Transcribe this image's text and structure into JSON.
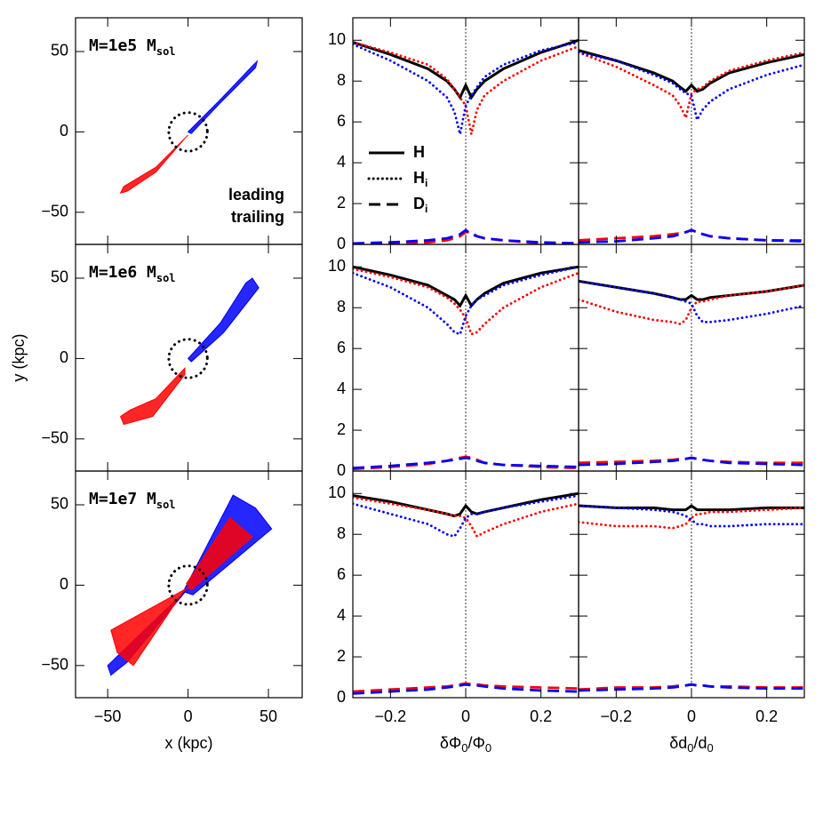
{
  "chart_data": [
    {
      "type": "region",
      "label": "M=1e5 M",
      "label_sub": "sol",
      "xlim": [
        -70,
        71
      ],
      "ylim": [
        -70,
        71
      ],
      "xticks": [
        {
          "value": -50,
          "label": "−50"
        },
        0,
        50
      ],
      "yticks": [
        {
          "value": -50,
          "label": "−50"
        },
        0,
        50
      ],
      "show_xtick_labels": false,
      "show_ytick_labels": true,
      "circle_radius": 12,
      "series": [
        {
          "name": "leading",
          "color": "#ff0000",
          "x": [
            0,
            -20,
            -40,
            -42,
            -38,
            -20,
            -2
          ],
          "y": [
            -2,
            -22,
            -34,
            -38,
            -37,
            -25,
            -4
          ]
        },
        {
          "name": "trailing",
          "color": "#0000ff",
          "x": [
            0,
            20,
            40,
            43,
            42,
            20,
            2
          ],
          "y": [
            0,
            20,
            41,
            44,
            40,
            18,
            -1
          ]
        }
      ]
    },
    {
      "type": "line",
      "xlim": [
        -0.3,
        0.3
      ],
      "ylim": [
        0,
        11.1
      ],
      "xticks": [
        {
          "value": -0.2,
          "label": "−0.2"
        },
        0,
        0.2
      ],
      "yticks": [
        0,
        2,
        4,
        6,
        8,
        10
      ],
      "show_xtick_labels": false,
      "show_ytick_labels": true,
      "vline": 0,
      "legend": [
        {
          "name": "H",
          "style": "solid"
        },
        {
          "name": "H",
          "sub": "i",
          "style": "dotted"
        },
        {
          "name": "D",
          "sub": "i",
          "style": "dashed"
        }
      ],
      "x": [
        -0.3,
        -0.2,
        -0.1,
        -0.05,
        -0.03,
        -0.015,
        0,
        0.015,
        0.03,
        0.05,
        0.1,
        0.2,
        0.3
      ],
      "series": [
        {
          "color": "#000000",
          "style": "solid",
          "values": [
            9.9,
            9.3,
            8.6,
            8.0,
            7.6,
            7.2,
            7.8,
            7.2,
            7.6,
            8.0,
            8.6,
            9.4,
            10.0
          ]
        },
        {
          "color": "#ff0000",
          "style": "dotted",
          "values": [
            9.9,
            9.4,
            8.8,
            8.1,
            7.6,
            7.2,
            6.8,
            5.4,
            6.6,
            7.3,
            8.0,
            9.0,
            9.7
          ]
        },
        {
          "color": "#0000ff",
          "style": "dotted",
          "values": [
            9.8,
            9.0,
            8.0,
            7.2,
            6.5,
            5.4,
            6.8,
            7.3,
            7.7,
            8.2,
            8.8,
            9.5,
            9.9
          ]
        },
        {
          "color": "#ff0000",
          "style": "dashed",
          "values": [
            0.05,
            0.05,
            0.1,
            0.2,
            0.3,
            0.4,
            0.6,
            0.6,
            0.4,
            0.3,
            0.2,
            0.05,
            0.05
          ]
        },
        {
          "color": "#0000ff",
          "style": "dashed",
          "values": [
            0.05,
            0.1,
            0.2,
            0.3,
            0.4,
            0.5,
            0.7,
            0.5,
            0.4,
            0.3,
            0.2,
            0.1,
            0.05
          ]
        }
      ]
    },
    {
      "type": "line",
      "xlim": [
        -0.3,
        0.3
      ],
      "ylim": [
        0,
        11.1
      ],
      "xticks": [
        {
          "value": -0.2,
          "label": "−0.2"
        },
        0,
        0.2
      ],
      "yticks": [
        0,
        2,
        4,
        6,
        8,
        10
      ],
      "show_xtick_labels": false,
      "show_ytick_labels": false,
      "vline": 0,
      "x": [
        -0.3,
        -0.2,
        -0.1,
        -0.05,
        -0.03,
        -0.015,
        0,
        0.015,
        0.03,
        0.05,
        0.1,
        0.2,
        0.3
      ],
      "series": [
        {
          "color": "#000000",
          "style": "solid",
          "values": [
            9.5,
            9.0,
            8.4,
            8.0,
            7.7,
            7.5,
            7.8,
            7.5,
            7.6,
            7.9,
            8.4,
            8.9,
            9.3
          ]
        },
        {
          "color": "#ff0000",
          "style": "dotted",
          "values": [
            9.4,
            8.7,
            7.8,
            7.3,
            6.8,
            6.2,
            7.4,
            7.6,
            7.7,
            8.0,
            8.5,
            9.0,
            9.4
          ]
        },
        {
          "color": "#0000ff",
          "style": "dotted",
          "values": [
            9.4,
            9.0,
            8.3,
            7.9,
            7.6,
            7.4,
            7.3,
            6.1,
            6.6,
            7.0,
            7.6,
            8.3,
            8.8
          ]
        },
        {
          "color": "#ff0000",
          "style": "dashed",
          "values": [
            0.2,
            0.3,
            0.4,
            0.5,
            0.55,
            0.6,
            0.7,
            0.6,
            0.5,
            0.4,
            0.3,
            0.2,
            0.2
          ]
        },
        {
          "color": "#0000ff",
          "style": "dashed",
          "values": [
            0.1,
            0.15,
            0.3,
            0.4,
            0.5,
            0.6,
            0.7,
            0.6,
            0.5,
            0.4,
            0.3,
            0.2,
            0.15
          ]
        }
      ]
    },
    {
      "type": "region",
      "label": "M=1e6 M",
      "label_sub": "sol",
      "ylabel": "y (kpc)",
      "xlim": [
        -70,
        71
      ],
      "ylim": [
        -70,
        71
      ],
      "xticks": [
        {
          "value": -50,
          "label": "−50"
        },
        0,
        50
      ],
      "yticks": [
        {
          "value": -50,
          "label": "−50"
        },
        0,
        50
      ],
      "show_xtick_labels": false,
      "show_ytick_labels": true,
      "circle_radius": 12,
      "series": [
        {
          "color": "#ff0000",
          "x": [
            -2,
            -20,
            -36,
            -42,
            -40,
            -22,
            -2
          ],
          "y": [
            -6,
            -25,
            -32,
            -36,
            -41,
            -36,
            -10
          ]
        },
        {
          "color": "#0000ff",
          "x": [
            0,
            20,
            36,
            40,
            44,
            22,
            2
          ],
          "y": [
            0,
            22,
            47,
            50,
            44,
            16,
            -2
          ]
        }
      ]
    },
    {
      "type": "line",
      "xlim": [
        -0.3,
        0.3
      ],
      "ylim": [
        0,
        11.1
      ],
      "xticks": [
        {
          "value": -0.2,
          "label": "−0.2"
        },
        0,
        0.2
      ],
      "yticks": [
        0,
        2,
        4,
        6,
        8,
        10
      ],
      "show_xtick_labels": false,
      "show_ytick_labels": true,
      "vline": 0,
      "x": [
        -0.3,
        -0.2,
        -0.1,
        -0.05,
        -0.03,
        -0.015,
        0,
        0.015,
        0.03,
        0.05,
        0.1,
        0.2,
        0.3
      ],
      "series": [
        {
          "color": "#000000",
          "style": "solid",
          "values": [
            10.0,
            9.6,
            9.1,
            8.6,
            8.4,
            8.1,
            8.6,
            8.1,
            8.4,
            8.7,
            9.2,
            9.7,
            10.0
          ]
        },
        {
          "color": "#ff0000",
          "style": "dotted",
          "values": [
            9.9,
            9.5,
            9.0,
            8.5,
            8.2,
            7.9,
            7.5,
            6.7,
            6.8,
            7.2,
            8.0,
            9.0,
            9.7
          ]
        },
        {
          "color": "#0000ff",
          "style": "dotted",
          "values": [
            9.7,
            9.0,
            8.0,
            7.2,
            6.8,
            6.7,
            7.6,
            8.1,
            8.4,
            8.6,
            9.1,
            9.6,
            10.0
          ]
        },
        {
          "color": "#ff0000",
          "style": "dashed",
          "values": [
            0.1,
            0.2,
            0.35,
            0.5,
            0.6,
            0.65,
            0.7,
            0.65,
            0.55,
            0.4,
            0.3,
            0.2,
            0.15
          ]
        },
        {
          "color": "#0000ff",
          "style": "dashed",
          "values": [
            0.15,
            0.25,
            0.4,
            0.5,
            0.55,
            0.6,
            0.65,
            0.6,
            0.5,
            0.4,
            0.3,
            0.25,
            0.2
          ]
        }
      ]
    },
    {
      "type": "line",
      "xlim": [
        -0.3,
        0.3
      ],
      "ylim": [
        0,
        11.1
      ],
      "xticks": [
        {
          "value": -0.2,
          "label": "−0.2"
        },
        0,
        0.2
      ],
      "yticks": [
        0,
        2,
        4,
        6,
        8,
        10
      ],
      "show_xtick_labels": false,
      "show_ytick_labels": false,
      "vline": 0,
      "x": [
        -0.3,
        -0.2,
        -0.1,
        -0.05,
        -0.03,
        -0.015,
        0,
        0.015,
        0.03,
        0.05,
        0.1,
        0.2,
        0.3
      ],
      "series": [
        {
          "color": "#000000",
          "style": "solid",
          "values": [
            9.3,
            9.0,
            8.7,
            8.5,
            8.4,
            8.4,
            8.6,
            8.4,
            8.4,
            8.5,
            8.6,
            8.8,
            9.1
          ]
        },
        {
          "color": "#ff0000",
          "style": "dotted",
          "values": [
            8.4,
            7.8,
            7.4,
            7.3,
            7.2,
            7.4,
            8.0,
            8.3,
            8.3,
            8.4,
            8.6,
            8.8,
            9.1
          ]
        },
        {
          "color": "#0000ff",
          "style": "dotted",
          "values": [
            9.3,
            9.0,
            8.7,
            8.5,
            8.4,
            8.3,
            8.2,
            7.6,
            7.3,
            7.3,
            7.4,
            7.7,
            8.1
          ]
        },
        {
          "color": "#ff0000",
          "style": "dashed",
          "values": [
            0.4,
            0.45,
            0.5,
            0.55,
            0.6,
            0.6,
            0.65,
            0.6,
            0.55,
            0.5,
            0.45,
            0.4,
            0.4
          ]
        },
        {
          "color": "#0000ff",
          "style": "dashed",
          "values": [
            0.3,
            0.35,
            0.45,
            0.5,
            0.55,
            0.6,
            0.65,
            0.6,
            0.55,
            0.5,
            0.4,
            0.35,
            0.3
          ]
        }
      ]
    },
    {
      "type": "region",
      "label": "M=1e7 M",
      "label_sub": "sol",
      "xlabel": [
        {
          "text": "x (kpc)"
        }
      ],
      "xlim": [
        -70,
        71
      ],
      "ylim": [
        -70,
        71
      ],
      "xticks": [
        {
          "value": -50,
          "label": "−50"
        },
        0,
        50
      ],
      "yticks": [
        {
          "value": -50,
          "label": "−50"
        },
        0,
        50
      ],
      "show_xtick_labels": true,
      "show_ytick_labels": true,
      "circle_radius": 12,
      "series": [
        {
          "color": "#0000ff",
          "x": [
            -3,
            28,
            42,
            52,
            3
          ],
          "y": [
            -4,
            56,
            48,
            35,
            -6
          ]
        },
        {
          "color": "#0000ff",
          "x": [
            0,
            -50,
            -48,
            -38
          ],
          "y": [
            -2,
            -50,
            -56,
            -48
          ]
        },
        {
          "color": "#ff0000",
          "x": [
            -1,
            26,
            40,
            2
          ],
          "y": [
            1,
            42,
            30,
            -3
          ]
        },
        {
          "color": "#ff0000",
          "x": [
            1,
            -48,
            -44,
            -34,
            -3
          ],
          "y": [
            -1,
            -28,
            -42,
            -50,
            -4
          ]
        }
      ]
    },
    {
      "type": "line",
      "xlim": [
        -0.3,
        0.3
      ],
      "ylim": [
        0,
        11.1
      ],
      "xticks": [
        {
          "value": -0.2,
          "label": "−0.2"
        },
        0,
        0.2
      ],
      "yticks": [
        0,
        2,
        4,
        6,
        8,
        10
      ],
      "show_xtick_labels": true,
      "show_ytick_labels": true,
      "vline": 0,
      "xlabel": [
        {
          "text": "δΦ"
        },
        {
          "text": "0",
          "sub": true
        },
        {
          "text": "/Φ"
        },
        {
          "text": "0",
          "sub": true
        }
      ],
      "x": [
        -0.3,
        -0.2,
        -0.1,
        -0.05,
        -0.03,
        -0.015,
        0,
        0.015,
        0.03,
        0.05,
        0.1,
        0.2,
        0.3
      ],
      "series": [
        {
          "color": "#000000",
          "style": "solid",
          "values": [
            9.9,
            9.6,
            9.2,
            9.0,
            8.9,
            9.0,
            9.4,
            9.1,
            9.0,
            9.1,
            9.3,
            9.7,
            10.0
          ]
        },
        {
          "color": "#ff0000",
          "style": "dotted",
          "values": [
            9.8,
            9.5,
            9.2,
            9.0,
            8.9,
            8.9,
            8.8,
            8.4,
            7.9,
            8.1,
            8.5,
            9.1,
            9.5
          ]
        },
        {
          "color": "#0000ff",
          "style": "dotted",
          "values": [
            9.5,
            9.0,
            8.5,
            8.0,
            7.9,
            8.3,
            8.8,
            9.0,
            9.0,
            9.1,
            9.3,
            9.6,
            9.9
          ]
        },
        {
          "color": "#ff0000",
          "style": "dashed",
          "values": [
            0.3,
            0.4,
            0.5,
            0.55,
            0.6,
            0.65,
            0.7,
            0.65,
            0.65,
            0.6,
            0.55,
            0.5,
            0.45
          ]
        },
        {
          "color": "#0000ff",
          "style": "dashed",
          "values": [
            0.2,
            0.3,
            0.4,
            0.5,
            0.55,
            0.6,
            0.65,
            0.6,
            0.6,
            0.55,
            0.45,
            0.35,
            0.3
          ]
        }
      ]
    },
    {
      "type": "line",
      "xlim": [
        -0.3,
        0.3
      ],
      "ylim": [
        0,
        11.1
      ],
      "xticks": [
        {
          "value": -0.2,
          "label": "−0.2"
        },
        0,
        0.2
      ],
      "yticks": [
        0,
        2,
        4,
        6,
        8,
        10
      ],
      "show_xtick_labels": true,
      "show_ytick_labels": false,
      "vline": 0,
      "xlabel": [
        {
          "text": "δd"
        },
        {
          "text": "0",
          "sub": true
        },
        {
          "text": "/d"
        },
        {
          "text": "0",
          "sub": true
        }
      ],
      "x": [
        -0.3,
        -0.2,
        -0.1,
        -0.05,
        -0.03,
        -0.015,
        0,
        0.015,
        0.03,
        0.05,
        0.1,
        0.2,
        0.3
      ],
      "series": [
        {
          "color": "#000000",
          "style": "solid",
          "values": [
            9.4,
            9.3,
            9.3,
            9.2,
            9.2,
            9.2,
            9.4,
            9.2,
            9.2,
            9.2,
            9.2,
            9.3,
            9.3
          ]
        },
        {
          "color": "#ff0000",
          "style": "dotted",
          "values": [
            8.6,
            8.4,
            8.4,
            8.3,
            8.4,
            8.5,
            8.8,
            9.0,
            9.0,
            9.1,
            9.1,
            9.2,
            9.3
          ]
        },
        {
          "color": "#0000ff",
          "style": "dotted",
          "values": [
            9.4,
            9.3,
            9.2,
            9.1,
            9.0,
            8.9,
            8.7,
            8.5,
            8.5,
            8.4,
            8.4,
            8.5,
            8.5
          ]
        },
        {
          "color": "#ff0000",
          "style": "dashed",
          "values": [
            0.4,
            0.5,
            0.5,
            0.55,
            0.6,
            0.6,
            0.65,
            0.6,
            0.6,
            0.55,
            0.55,
            0.5,
            0.5
          ]
        },
        {
          "color": "#0000ff",
          "style": "dashed",
          "values": [
            0.35,
            0.4,
            0.45,
            0.5,
            0.55,
            0.6,
            0.65,
            0.6,
            0.6,
            0.55,
            0.5,
            0.45,
            0.45
          ]
        }
      ]
    }
  ]
}
